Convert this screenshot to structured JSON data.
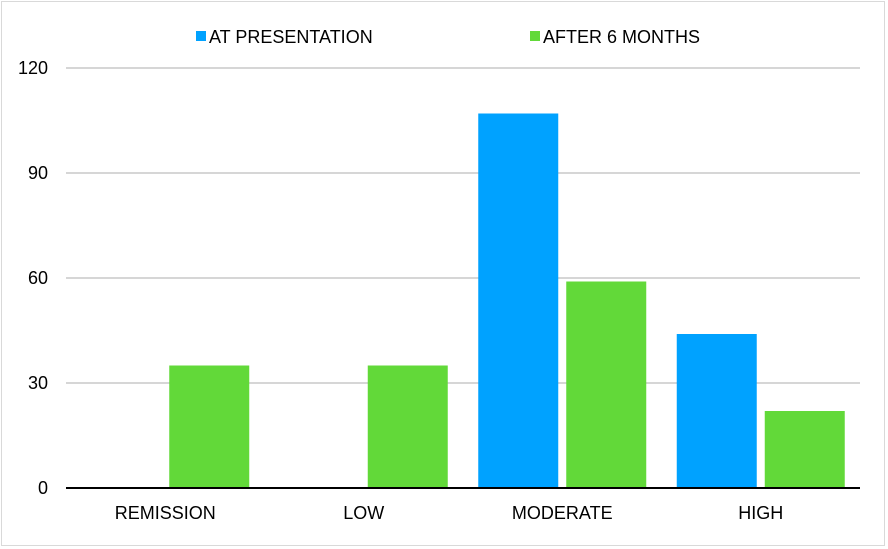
{
  "chart_data": {
    "type": "bar",
    "categories": [
      "REMISSION",
      "LOW",
      "MODERATE",
      "HIGH"
    ],
    "series": [
      {
        "name": "AT PRESENTATION",
        "values": [
          0,
          0,
          107,
          44
        ],
        "color": "#00a2ff"
      },
      {
        "name": "AFTER 6 MONTHS",
        "values": [
          35,
          35,
          59,
          22
        ],
        "color": "#62d939"
      }
    ],
    "yticks": [
      0,
      30,
      60,
      90,
      120
    ],
    "ylim": [
      0,
      120
    ],
    "grid": true,
    "legend_position": "top-center"
  }
}
